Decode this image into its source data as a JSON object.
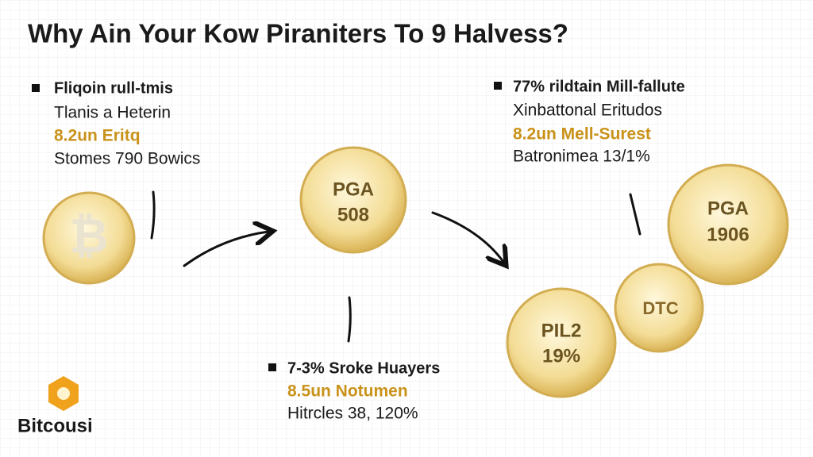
{
  "title": "Why Ain Your Kow Piraniters To 9 Halvess?",
  "blocks": [
    {
      "heading": "Fliqoin rull-tmis",
      "lines": [
        "Tlanis a Heterin",
        "8.2un Eritq",
        "Stomes 790 Bowics"
      ]
    },
    {
      "heading": "77% rildtain Mill-fallute",
      "lines": [
        "Xinbattonal Eritudos",
        "8.2un Mell-Surest",
        "Batronimea 13/1%"
      ]
    },
    {
      "heading": "7-3% Sroke Huayers",
      "lines": [
        "8.5un Notumen",
        "Hitrcles 38, 120%"
      ]
    }
  ],
  "coins": [
    {
      "symbol": "₿"
    },
    {
      "label": "PGA",
      "value": "508"
    },
    {
      "label": "PGA",
      "value": "1906"
    },
    {
      "label": "DTC"
    },
    {
      "label": "PIL2",
      "value": "19%"
    }
  ],
  "logo": {
    "name": "Bitcousi"
  }
}
